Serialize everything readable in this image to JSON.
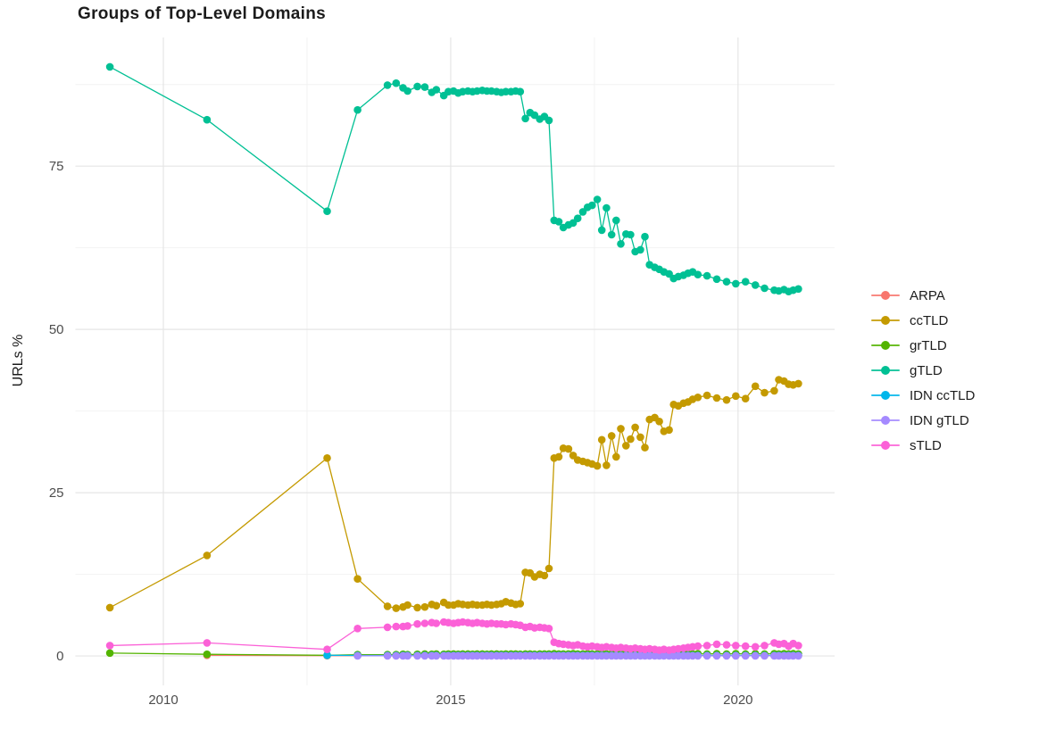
{
  "title": "Groups of Top-Level Domains",
  "y_axis_label": "URLs %",
  "style": {
    "background": "#ffffff",
    "grid_major_color": "#e5e5e5",
    "grid_minor_color": "#f2f2f2",
    "tick_label_color": "#4d4d4d",
    "title_color": "#1c1c1c",
    "legend_text_color": "#1c1c1c"
  },
  "chart_data": {
    "type": "line",
    "title": "Groups of Top-Level Domains",
    "xlabel": "",
    "ylabel": "URLs %",
    "grid": true,
    "legend_position": "right",
    "x_ticks": [
      2010,
      2015,
      2020
    ],
    "x_minor_ticks": [
      2012.5,
      2017.5
    ],
    "y_ticks": [
      0,
      25,
      50,
      75
    ],
    "y_minor_ticks": [
      12.5,
      37.5,
      62.5,
      87.5
    ],
    "xlim": [
      2008.47,
      2021.68
    ],
    "ylim": [
      -4.5,
      94.7
    ],
    "x": [
      2009.07,
      2010.76,
      2012.85,
      2013.38,
      2013.9,
      2014.05,
      2014.17,
      2014.25,
      2014.42,
      2014.55,
      2014.67,
      2014.75,
      2014.88,
      2014.96,
      2015.05,
      2015.13,
      2015.21,
      2015.3,
      2015.38,
      2015.46,
      2015.55,
      2015.63,
      2015.71,
      2015.8,
      2015.88,
      2015.96,
      2016.05,
      2016.13,
      2016.21,
      2016.3,
      2016.38,
      2016.46,
      2016.55,
      2016.63,
      2016.71,
      2016.8,
      2016.88,
      2016.96,
      2017.05,
      2017.13,
      2017.21,
      2017.3,
      2017.38,
      2017.46,
      2017.55,
      2017.63,
      2017.71,
      2017.8,
      2017.88,
      2017.96,
      2018.05,
      2018.13,
      2018.21,
      2018.3,
      2018.38,
      2018.46,
      2018.55,
      2018.63,
      2018.71,
      2018.8,
      2018.88,
      2018.96,
      2019.05,
      2019.13,
      2019.21,
      2019.3,
      2019.46,
      2019.63,
      2019.8,
      2019.96,
      2020.13,
      2020.3,
      2020.46,
      2020.63,
      2020.71,
      2020.8,
      2020.88,
      2020.96,
      2021.05
    ],
    "series": [
      {
        "name": "ARPA",
        "color": "#F8766D",
        "values": [
          null,
          0.1,
          0.05,
          0.05,
          0.05,
          0.05,
          0.05,
          0.05,
          0.05,
          0.05,
          0.05,
          0.05,
          0.05,
          0.05,
          0.05,
          0.05,
          0.05,
          0.05,
          0.05,
          0.05,
          0.05,
          0.05,
          0.05,
          0.05,
          0.05,
          0.05,
          0.05,
          0.05,
          0.05,
          0.05,
          0.05,
          0.05,
          0.05,
          0.05,
          0.05,
          0.05,
          0.05,
          0.05,
          0.05,
          0.05,
          0.05,
          0.05,
          0.05,
          0.05,
          0.05,
          0.05,
          0.05,
          0.05,
          0.05,
          0.05,
          0.05,
          0.05,
          0.05,
          0.05,
          0.05,
          0.05,
          0.05,
          0.05,
          0.05,
          0.05,
          0.05,
          0.05,
          0.05,
          0.05,
          0.05,
          0.05,
          0.05,
          0.05,
          0.05,
          0.05,
          0.05,
          0.05,
          0.05,
          0.05,
          0.05,
          0.05,
          0.05,
          0.05,
          0.05
        ]
      },
      {
        "name": "ccTLD",
        "color": "#C49A00",
        "values": [
          7.4,
          15.4,
          30.3,
          11.8,
          7.6,
          7.3,
          7.5,
          7.8,
          7.4,
          7.5,
          7.9,
          7.7,
          8.2,
          7.8,
          7.8,
          8.0,
          7.9,
          7.8,
          7.9,
          7.8,
          7.8,
          7.9,
          7.8,
          7.9,
          8.0,
          8.3,
          8.1,
          7.9,
          8.0,
          12.8,
          12.7,
          12.1,
          12.5,
          12.3,
          13.4,
          30.3,
          30.5,
          31.8,
          31.7,
          30.7,
          30.0,
          29.8,
          29.6,
          29.4,
          29.1,
          33.1,
          29.2,
          33.7,
          30.5,
          34.8,
          32.2,
          33.2,
          35.0,
          33.5,
          31.9,
          36.2,
          36.5,
          35.9,
          34.4,
          34.6,
          38.5,
          38.3,
          38.7,
          38.9,
          39.3,
          39.6,
          39.9,
          39.5,
          39.2,
          39.8,
          39.4,
          41.3,
          40.3,
          40.6,
          42.3,
          42.1,
          41.6,
          41.5,
          41.7
        ]
      },
      {
        "name": "grTLD",
        "color": "#53B400",
        "values": [
          0.45,
          0.25,
          0.1,
          0.2,
          0.2,
          0.2,
          0.25,
          0.2,
          0.25,
          0.3,
          0.25,
          0.3,
          0.25,
          0.3,
          0.3,
          0.25,
          0.3,
          0.3,
          0.25,
          0.3,
          0.3,
          0.25,
          0.3,
          0.3,
          0.25,
          0.3,
          0.3,
          0.3,
          0.25,
          0.3,
          0.3,
          0.25,
          0.3,
          0.3,
          0.3,
          0.35,
          0.3,
          0.3,
          0.3,
          0.35,
          0.3,
          0.3,
          0.35,
          0.3,
          0.3,
          0.35,
          0.3,
          0.35,
          0.3,
          0.3,
          0.35,
          0.3,
          0.3,
          0.35,
          0.3,
          0.3,
          0.35,
          0.3,
          0.35,
          0.3,
          0.3,
          0.35,
          0.3,
          0.35,
          0.3,
          0.35,
          0.3,
          0.35,
          0.3,
          0.35,
          0.3,
          0.35,
          0.3,
          0.35,
          0.3,
          0.35,
          0.3,
          0.35,
          0.3
        ]
      },
      {
        "name": "gTLD",
        "color": "#00C094",
        "values": [
          90.2,
          82.1,
          68.1,
          83.6,
          87.4,
          87.7,
          87.0,
          86.5,
          87.2,
          87.1,
          86.3,
          86.7,
          85.8,
          86.4,
          86.5,
          86.2,
          86.4,
          86.5,
          86.4,
          86.5,
          86.6,
          86.5,
          86.5,
          86.4,
          86.3,
          86.4,
          86.4,
          86.5,
          86.4,
          82.3,
          83.2,
          82.8,
          82.2,
          82.6,
          82.0,
          66.7,
          66.5,
          65.6,
          66.0,
          66.3,
          67.0,
          68.0,
          68.7,
          69.0,
          69.9,
          65.2,
          68.6,
          64.5,
          66.7,
          63.1,
          64.6,
          64.5,
          61.9,
          62.2,
          64.2,
          59.9,
          59.5,
          59.2,
          58.8,
          58.5,
          57.8,
          58.1,
          58.3,
          58.6,
          58.8,
          58.4,
          58.2,
          57.7,
          57.3,
          57.0,
          57.3,
          56.8,
          56.3,
          56.0,
          55.9,
          56.1,
          55.8,
          56.0,
          56.2
        ]
      },
      {
        "name": "IDN ccTLD",
        "color": "#00B6EB",
        "values": [
          null,
          null,
          0.1,
          0.08,
          0.08,
          0.08,
          0.08,
          0.08,
          0.08,
          0.08,
          0.08,
          0.08,
          0.08,
          0.08,
          0.08,
          0.08,
          0.08,
          0.08,
          0.08,
          0.08,
          0.08,
          0.08,
          0.08,
          0.08,
          0.08,
          0.08,
          0.08,
          0.08,
          0.08,
          0.08,
          0.08,
          0.08,
          0.08,
          0.08,
          0.08,
          0.08,
          0.08,
          0.08,
          0.08,
          0.08,
          0.08,
          0.08,
          0.08,
          0.08,
          0.08,
          0.08,
          0.08,
          0.08,
          0.08,
          0.08,
          0.08,
          0.08,
          0.08,
          0.08,
          0.08,
          0.08,
          0.08,
          0.08,
          0.08,
          0.08,
          0.08,
          0.08,
          0.08,
          0.08,
          0.08,
          0.08,
          0.08,
          0.08,
          0.08,
          0.08,
          0.08,
          0.08,
          0.08,
          0.08,
          0.08,
          0.08,
          0.08,
          0.08,
          0.08
        ]
      },
      {
        "name": "IDN gTLD",
        "color": "#A58AFF",
        "values": [
          null,
          null,
          null,
          0.02,
          0.02,
          0.02,
          0.02,
          0.02,
          0.02,
          0.02,
          0.02,
          0.02,
          0.02,
          0.02,
          0.02,
          0.02,
          0.02,
          0.02,
          0.02,
          0.02,
          0.02,
          0.02,
          0.02,
          0.02,
          0.02,
          0.02,
          0.02,
          0.02,
          0.02,
          0.02,
          0.02,
          0.02,
          0.02,
          0.02,
          0.02,
          0.02,
          0.02,
          0.02,
          0.02,
          0.02,
          0.02,
          0.02,
          0.02,
          0.02,
          0.02,
          0.02,
          0.02,
          0.02,
          0.02,
          0.02,
          0.02,
          0.02,
          0.02,
          0.02,
          0.02,
          0.02,
          0.02,
          0.02,
          0.02,
          0.02,
          0.02,
          0.02,
          0.02,
          0.02,
          0.02,
          0.02,
          0.02,
          0.02,
          0.02,
          0.02,
          0.02,
          0.02,
          0.02,
          0.02,
          0.02,
          0.02,
          0.02,
          0.02,
          0.02
        ]
      },
      {
        "name": "sTLD",
        "color": "#FB61D7",
        "values": [
          1.6,
          2.0,
          1.0,
          4.2,
          4.4,
          4.5,
          4.5,
          4.6,
          4.9,
          5.0,
          5.1,
          5.0,
          5.2,
          5.1,
          5.0,
          5.1,
          5.2,
          5.1,
          5.0,
          5.1,
          5.0,
          4.9,
          5.0,
          4.9,
          4.9,
          4.8,
          4.9,
          4.8,
          4.7,
          4.4,
          4.5,
          4.3,
          4.4,
          4.3,
          4.2,
          2.1,
          1.9,
          1.8,
          1.7,
          1.6,
          1.7,
          1.5,
          1.4,
          1.5,
          1.4,
          1.3,
          1.4,
          1.3,
          1.2,
          1.3,
          1.2,
          1.1,
          1.2,
          1.1,
          1.0,
          1.1,
          1.0,
          0.9,
          1.0,
          0.9,
          1.0,
          1.1,
          1.2,
          1.3,
          1.4,
          1.5,
          1.6,
          1.8,
          1.7,
          1.6,
          1.5,
          1.4,
          1.6,
          2.0,
          1.8,
          1.9,
          1.5,
          1.9,
          1.6
        ]
      }
    ]
  }
}
